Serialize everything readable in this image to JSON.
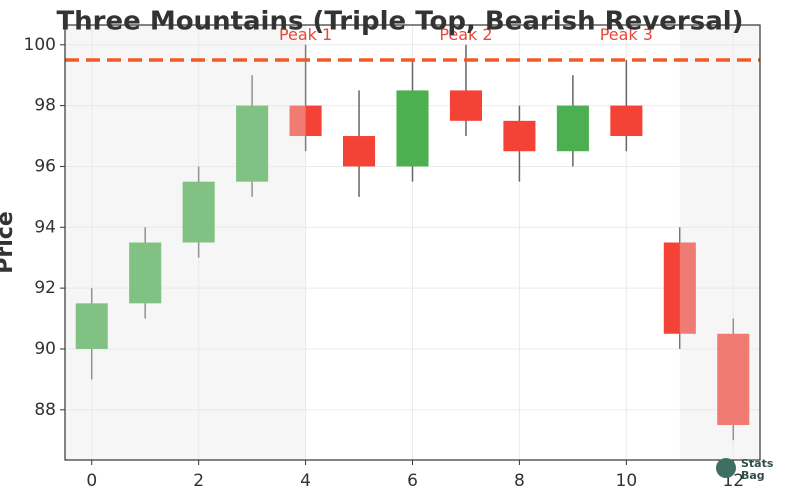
{
  "chart_data": {
    "type": "candlestick",
    "title": "Three Mountains (Triple Top, Bearish Reversal)",
    "y_label": "Price",
    "x": [
      0,
      1,
      2,
      3,
      4,
      5,
      6,
      7,
      8,
      9,
      10,
      11,
      12
    ],
    "open": [
      90,
      91.5,
      93.5,
      95.5,
      98,
      97,
      96,
      98.5,
      97.5,
      96.5,
      98,
      93.5,
      90.5
    ],
    "high": [
      92,
      94,
      96,
      99,
      100,
      98.5,
      99.5,
      100,
      98,
      99,
      99.5,
      94,
      91
    ],
    "low": [
      89,
      91,
      93,
      95,
      96.5,
      95,
      95.5,
      97,
      95.5,
      96,
      96.5,
      90,
      87
    ],
    "close": [
      91.5,
      93.5,
      95.5,
      98,
      97,
      96,
      98.5,
      97.5,
      96.5,
      98,
      97,
      90.5,
      87.5
    ],
    "up_color": "#4caf50",
    "down_color": "#f44336",
    "xlim": [
      -0.5,
      12.5
    ],
    "ylim": [
      86.35,
      100.65
    ],
    "xticks": [
      0,
      2,
      4,
      6,
      8,
      10,
      12
    ],
    "yticks": [
      88,
      90,
      92,
      94,
      96,
      98,
      100
    ],
    "grid": true,
    "highlight_ranges": [
      [
        -0.5,
        4
      ],
      [
        11,
        12.5
      ]
    ],
    "hline": {
      "y": 99.5,
      "color": "#f05a28"
    },
    "annotations": [
      {
        "text": "Peak 1",
        "x": 4,
        "y": 100.3
      },
      {
        "text": "Peak 2",
        "x": 7,
        "y": 100.3
      },
      {
        "text": "Peak 3",
        "x": 10,
        "y": 100.3
      }
    ],
    "annotation_color": "#e8473a"
  },
  "logo": {
    "line1": "Stats",
    "line2": "Bag"
  }
}
